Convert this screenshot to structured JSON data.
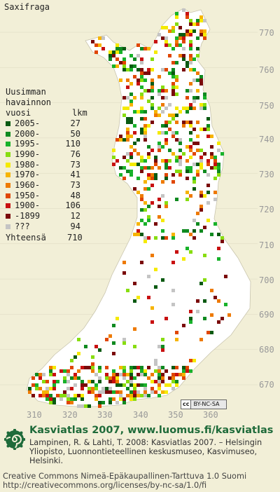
{
  "title": "Saxifraga",
  "legend": {
    "header_lines": [
      "Uusimman",
      "havainnon"
    ],
    "col_label": "vuosi",
    "col_count": "lkm",
    "rows": [
      {
        "label": "2005-",
        "count": "27",
        "color": "#0a5a12"
      },
      {
        "label": "2000-",
        "count": "50",
        "color": "#0f8a20"
      },
      {
        "label": "1995-",
        "count": "110",
        "color": "#18b22a"
      },
      {
        "label": "1990-",
        "count": "76",
        "color": "#88dd10"
      },
      {
        "label": "1980-",
        "count": "73",
        "color": "#f5ea00"
      },
      {
        "label": "1970-",
        "count": "41",
        "color": "#f6b400"
      },
      {
        "label": "1960-",
        "count": "73",
        "color": "#ee7a00"
      },
      {
        "label": "1950-",
        "count": "48",
        "color": "#e04600"
      },
      {
        "label": "1900-",
        "count": "106",
        "color": "#c81010"
      },
      {
        "label": "-1899",
        "count": "12",
        "color": "#7a0a0a"
      },
      {
        "label": "???",
        "count": "94",
        "color": "#c4c4c4"
      }
    ],
    "total_label": "Yhteensä",
    "total_count": "710"
  },
  "axes": {
    "y_ticks": [
      "770",
      "760",
      "750",
      "740",
      "730",
      "720",
      "710",
      "700",
      "690",
      "680",
      "670"
    ],
    "x_ticks": [
      "310",
      "320",
      "330",
      "340",
      "350",
      "360"
    ]
  },
  "cc_badge": {
    "cc": "cc",
    "license": "BY-NC-SA"
  },
  "credit": {
    "atlas_title": "Kasviatlas 2007, www.luomus.fi/kasviatlas",
    "citation": "Lampinen, R. & Lahti, T. 2008: Kasviatlas 2007. – Helsingin Yliopisto, Luonnontieteellinen keskusmuseo, Kasvimuseo, Helsinki.",
    "license_line1": "Creative Commons Nimeä-Epäkaupallinen-Tarttuva 1.0 Suomi",
    "license_line2": "http://creativecommons.org/licenses/by-nc-sa/1.0/fi"
  },
  "colors": {
    "land": "#ffffff",
    "background": "#f2efd7",
    "brand": "#1f6b3a",
    "grid": "#dcd8c0"
  }
}
